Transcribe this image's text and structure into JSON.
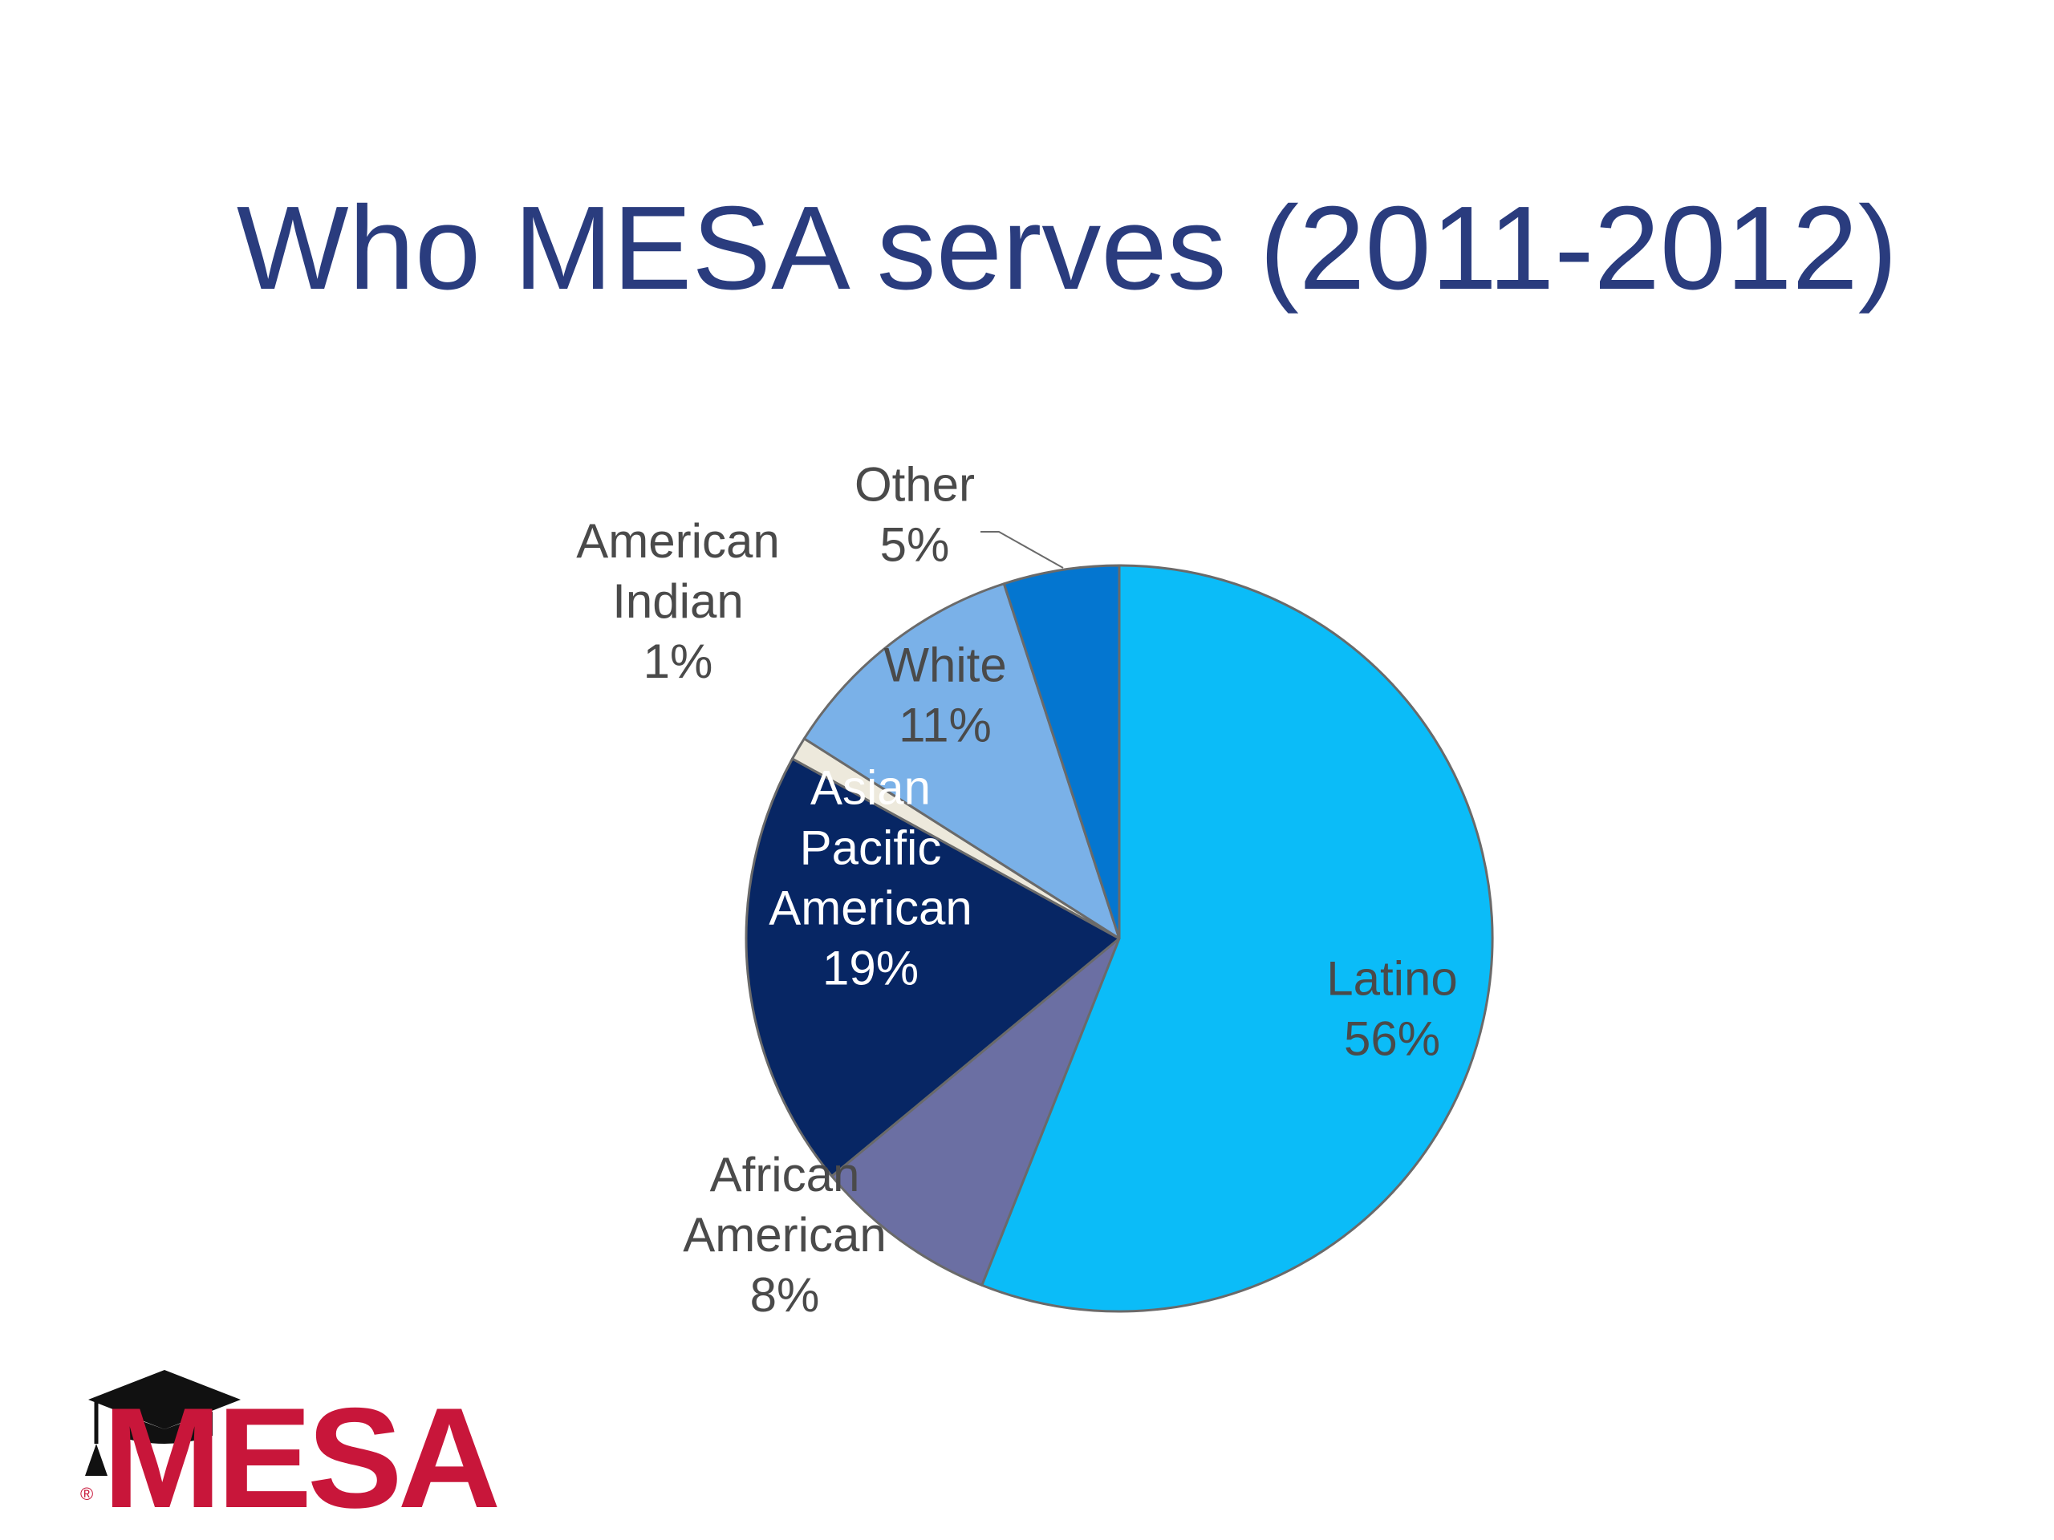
{
  "slide": {
    "title": "Who MESA serves (2011-2012)"
  },
  "chart_data": {
    "type": "pie",
    "title": "",
    "start_angle_deg": 0,
    "direction": "clockwise",
    "slices": [
      {
        "label_lines": [
          "Latino",
          "56%"
        ],
        "value": 56,
        "color": "#0bbcf8",
        "label_color": "#4a4a4a"
      },
      {
        "label_lines": [
          "African",
          "American",
          "8%"
        ],
        "value": 8,
        "color": "#6b6fa3",
        "label_color": "#4a4a4a"
      },
      {
        "label_lines": [
          "Asian",
          "Pacific",
          "American",
          "19%"
        ],
        "value": 19,
        "color": "#072664",
        "label_color": "#ffffff"
      },
      {
        "label_lines": [
          "American",
          "Indian",
          "1%"
        ],
        "value": 1,
        "color": "#ede9dc",
        "label_color": "#4a4a4a"
      },
      {
        "label_lines": [
          "White",
          "11%"
        ],
        "value": 11,
        "color": "#7ab1e8",
        "label_color": "#4a4a4a"
      },
      {
        "label_lines": [
          "Other",
          "5%"
        ],
        "value": 5,
        "color": "#0476d0",
        "label_color": "#4a4a4a"
      }
    ]
  },
  "logo": {
    "text": "MESA",
    "registered_mark": "®",
    "color": "#c8163a",
    "icon": "graduation-cap-icon"
  }
}
